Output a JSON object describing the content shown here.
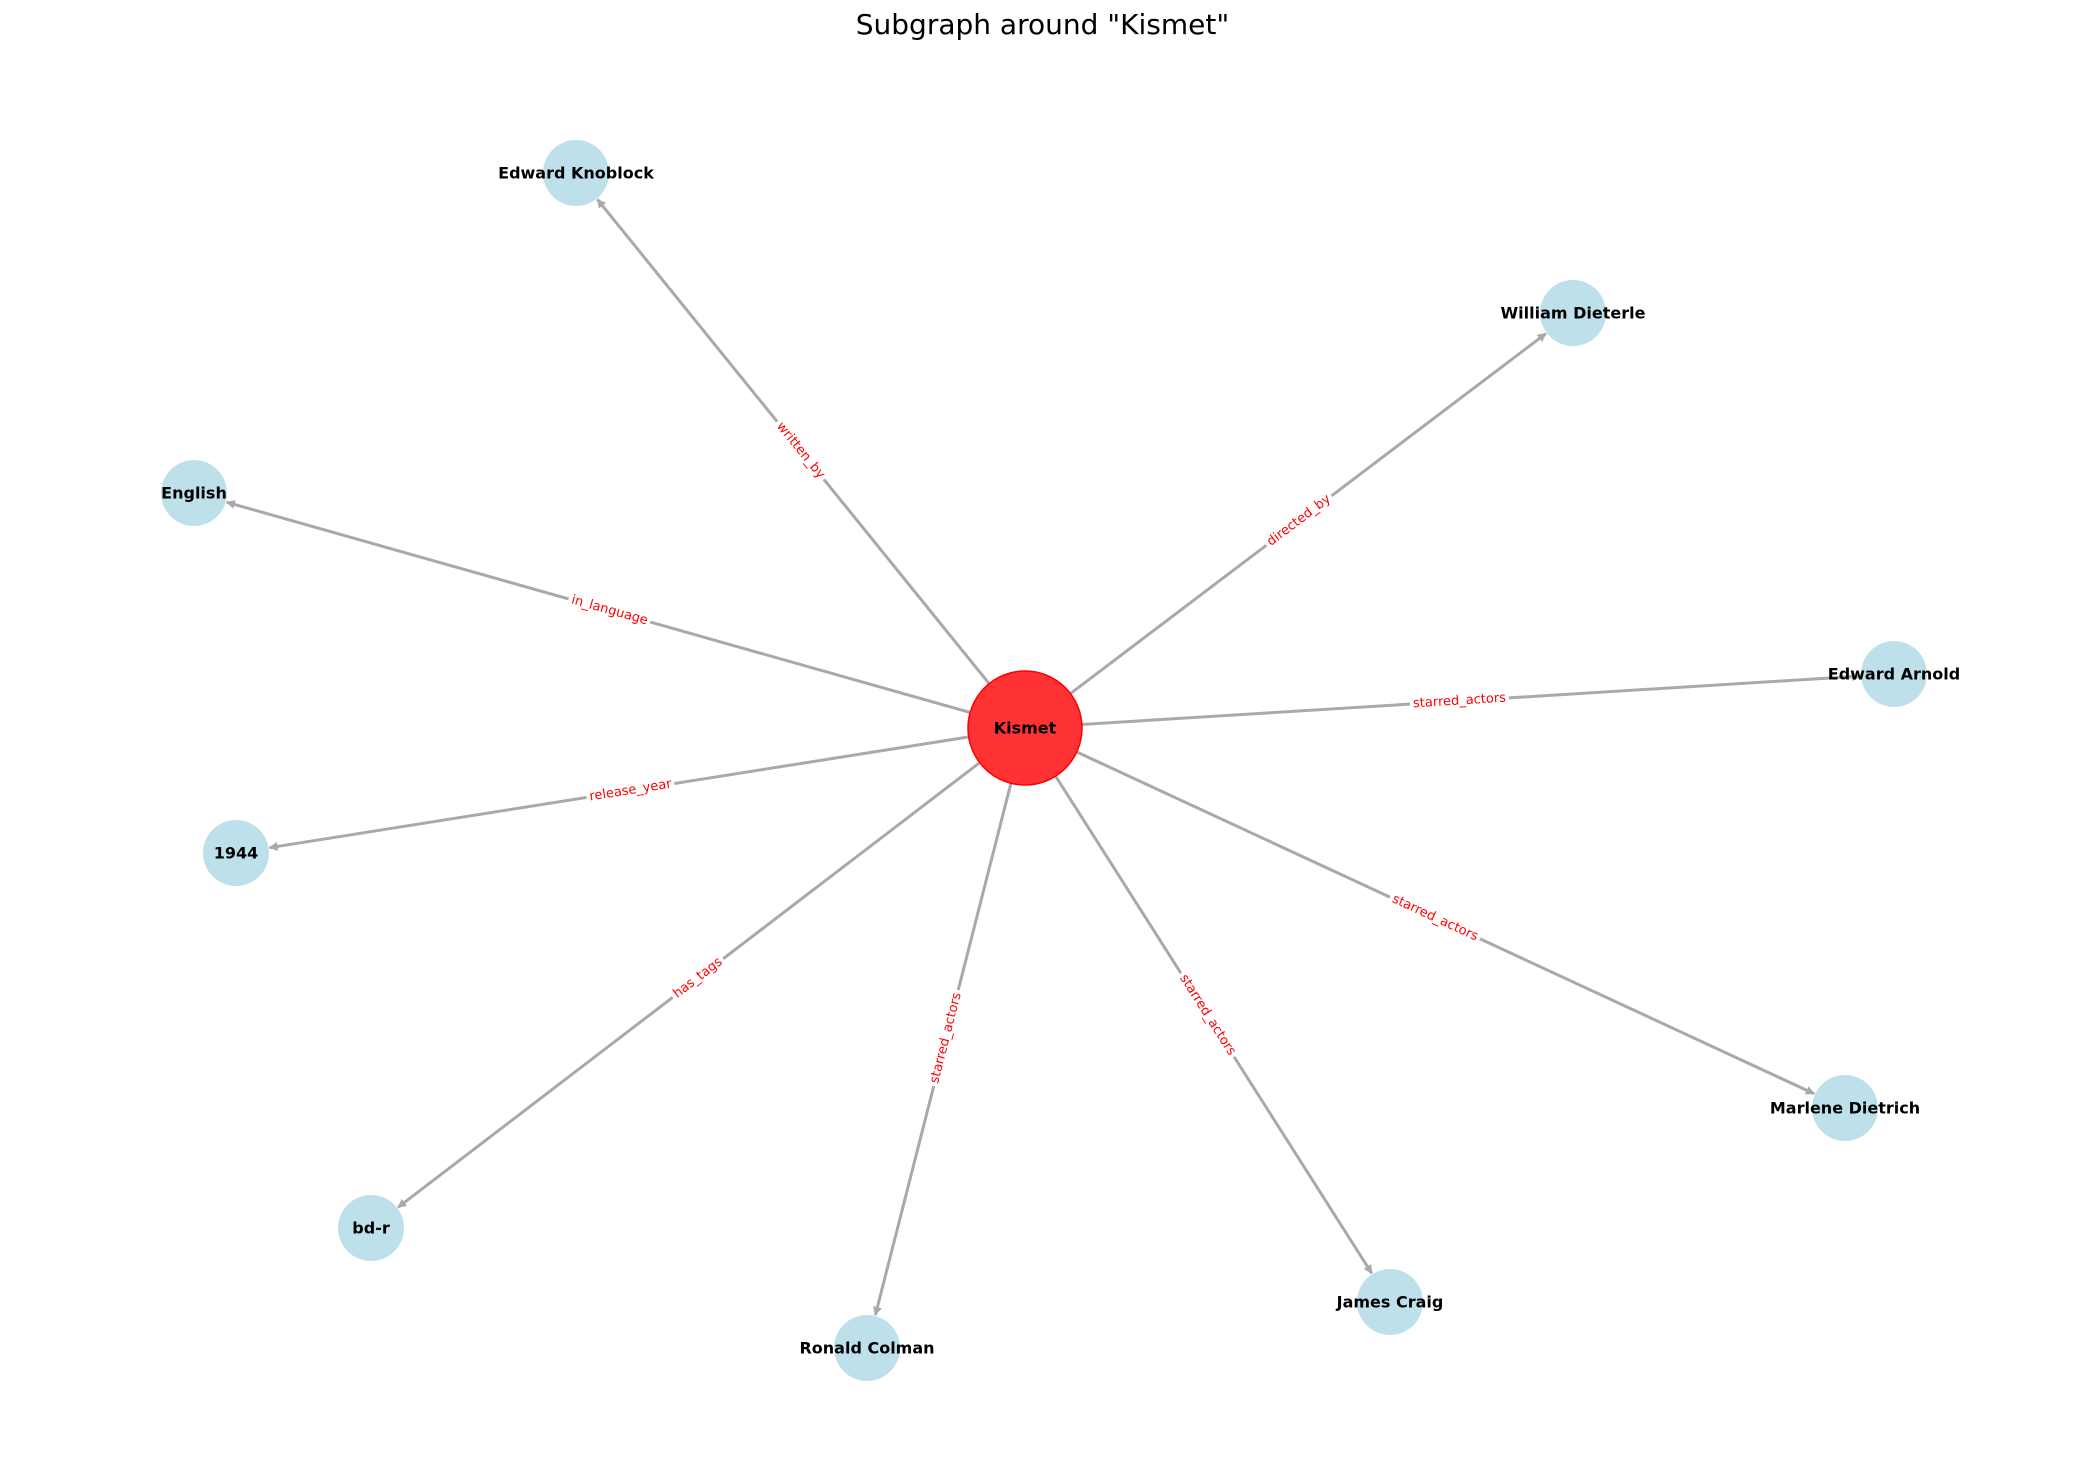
{
  "title": "Subgraph around \"Kismet\"",
  "colors": {
    "center_node": "#ff3333",
    "leaf_node": "#add8e6",
    "edge": "#a9a9a9",
    "edge_label": "#ff0000"
  },
  "center": {
    "id": "kismet",
    "label": "Kismet"
  },
  "nodes": [
    {
      "id": "edward-knoblock",
      "label": "Edward Knoblock"
    },
    {
      "id": "william-dieterle",
      "label": "William Dieterle"
    },
    {
      "id": "english",
      "label": "English"
    },
    {
      "id": "edward-arnold",
      "label": "Edward Arnold"
    },
    {
      "id": "1944",
      "label": "1944"
    },
    {
      "id": "marlene-dietrich",
      "label": "Marlene Dietrich"
    },
    {
      "id": "bd-r",
      "label": "bd-r"
    },
    {
      "id": "james-craig",
      "label": "James Craig"
    },
    {
      "id": "ronald-colman",
      "label": "Ronald Colman"
    }
  ],
  "edges": [
    {
      "source": "kismet",
      "target": "edward-knoblock",
      "label": "written_by"
    },
    {
      "source": "kismet",
      "target": "william-dieterle",
      "label": "directed_by"
    },
    {
      "source": "kismet",
      "target": "english",
      "label": "in_language"
    },
    {
      "source": "kismet",
      "target": "edward-arnold",
      "label": "starred_actors"
    },
    {
      "source": "kismet",
      "target": "1944",
      "label": "release_year"
    },
    {
      "source": "kismet",
      "target": "marlene-dietrich",
      "label": "starred_actors"
    },
    {
      "source": "kismet",
      "target": "bd-r",
      "label": "has_tags"
    },
    {
      "source": "kismet",
      "target": "james-craig",
      "label": "starred_actors"
    },
    {
      "source": "kismet",
      "target": "ronald-colman",
      "label": "starred_actors"
    }
  ]
}
